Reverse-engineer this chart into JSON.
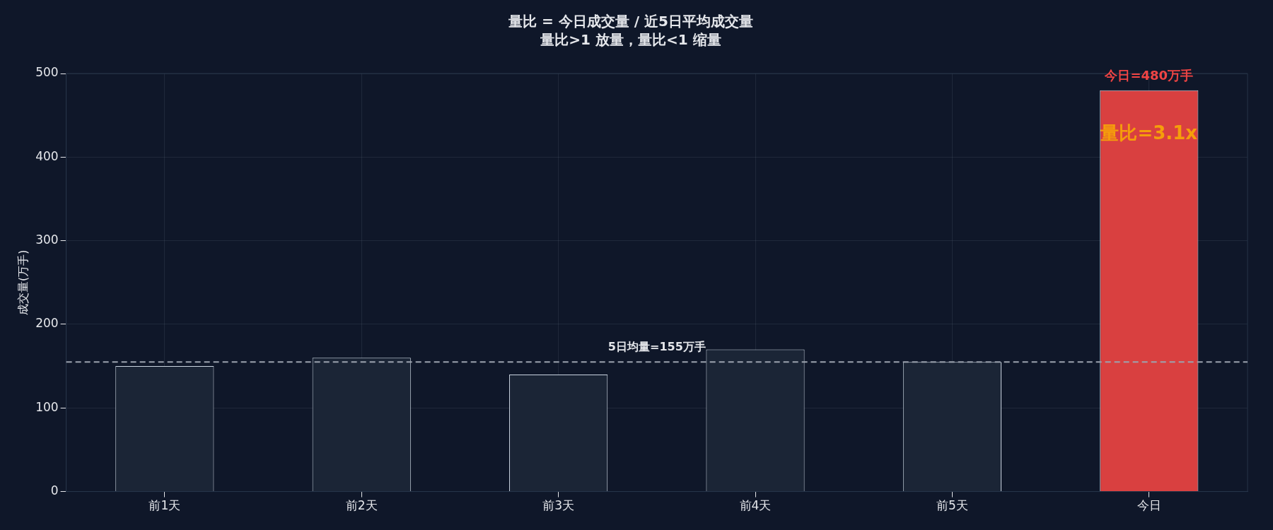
{
  "chart_data": {
    "type": "bar",
    "title": "量比 = 今日成交量 / 近5日平均成交量",
    "subtitle": "量比>1 放量，量比<1 缩量",
    "ylabel": "成交量(万手)",
    "categories": [
      "前1天",
      "前2天",
      "前3天",
      "前4天",
      "前5天",
      "今日"
    ],
    "values": [
      150,
      160,
      140,
      170,
      155,
      480
    ],
    "colors": [
      "#1b2536",
      "#1b2536",
      "#1b2536",
      "#1b2536",
      "#1b2536",
      "#d94040"
    ],
    "ylim": [
      0,
      500
    ],
    "yticks": [
      0,
      100,
      200,
      300,
      400,
      500
    ],
    "grid": true,
    "legend": false,
    "ref_lines": [
      {
        "axis": "y",
        "value": 155,
        "label": "5日均量=155万手",
        "color": "#9ca3af",
        "line_style": "dashed"
      }
    ],
    "annotations": [
      {
        "text": "今日=480万手",
        "x": "今日",
        "y": 480
      },
      "量比=3.1x"
    ]
  }
}
